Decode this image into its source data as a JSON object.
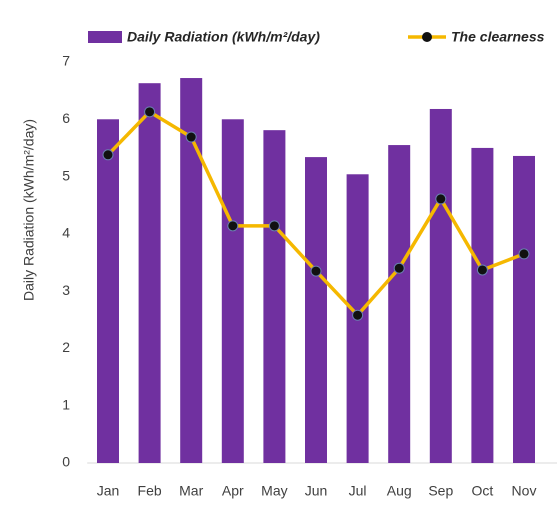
{
  "chart_data": {
    "type": "bar",
    "y_label": "Daily Radiation (kWh/m²/day)",
    "categories": [
      "Jan",
      "Feb",
      "Mar",
      "Apr",
      "May",
      "Jun",
      "Jul",
      "Aug",
      "Sep",
      "Oct",
      "Nov"
    ],
    "series": [
      {
        "name": "Daily Radiation (kWh/m²/day)",
        "type": "bar",
        "color": "#7030a0",
        "values": [
          6.0,
          6.63,
          6.72,
          6.0,
          5.81,
          5.34,
          5.04,
          5.55,
          6.18,
          5.5,
          5.36
        ]
      },
      {
        "name": "The clearness",
        "type": "line",
        "color": "#f5b800",
        "values": [
          5.38,
          6.13,
          5.69,
          4.14,
          4.14,
          3.35,
          2.58,
          3.4,
          4.61,
          3.37,
          3.65
        ]
      }
    ],
    "ylim": [
      0,
      7
    ],
    "yticks": [
      0,
      1,
      2,
      3,
      4,
      5,
      6,
      7
    ],
    "grid": false
  }
}
